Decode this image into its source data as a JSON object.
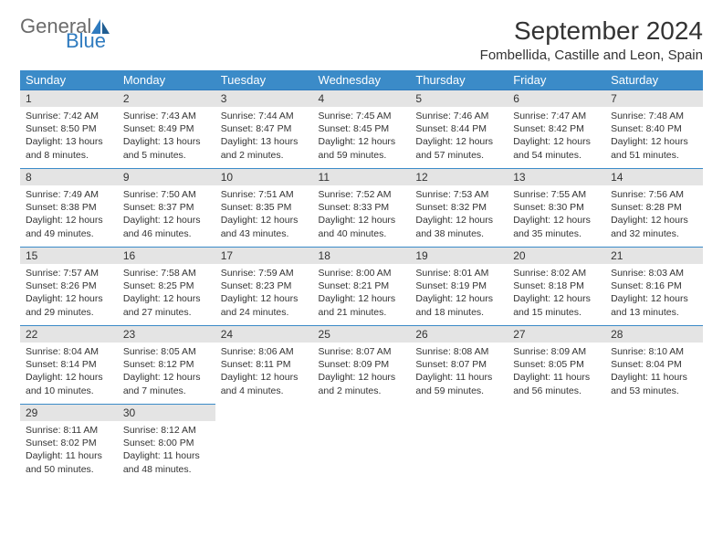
{
  "logo": {
    "part1": "General",
    "part2": "Blue"
  },
  "title": "September 2024",
  "location": "Fombellida, Castille and Leon, Spain",
  "colors": {
    "header_bg": "#3b8bc8",
    "header_text": "#ffffff",
    "daynum_bg": "#e4e4e4",
    "border": "#3b8bc8",
    "logo_gray": "#6b6b6b",
    "logo_blue": "#2f7bbf",
    "page_bg": "#ffffff",
    "text": "#333333"
  },
  "weekdays": [
    "Sunday",
    "Monday",
    "Tuesday",
    "Wednesday",
    "Thursday",
    "Friday",
    "Saturday"
  ],
  "weeks": [
    [
      {
        "n": "1",
        "sr": "Sunrise: 7:42 AM",
        "ss": "Sunset: 8:50 PM",
        "dl": "Daylight: 13 hours and 8 minutes."
      },
      {
        "n": "2",
        "sr": "Sunrise: 7:43 AM",
        "ss": "Sunset: 8:49 PM",
        "dl": "Daylight: 13 hours and 5 minutes."
      },
      {
        "n": "3",
        "sr": "Sunrise: 7:44 AM",
        "ss": "Sunset: 8:47 PM",
        "dl": "Daylight: 13 hours and 2 minutes."
      },
      {
        "n": "4",
        "sr": "Sunrise: 7:45 AM",
        "ss": "Sunset: 8:45 PM",
        "dl": "Daylight: 12 hours and 59 minutes."
      },
      {
        "n": "5",
        "sr": "Sunrise: 7:46 AM",
        "ss": "Sunset: 8:44 PM",
        "dl": "Daylight: 12 hours and 57 minutes."
      },
      {
        "n": "6",
        "sr": "Sunrise: 7:47 AM",
        "ss": "Sunset: 8:42 PM",
        "dl": "Daylight: 12 hours and 54 minutes."
      },
      {
        "n": "7",
        "sr": "Sunrise: 7:48 AM",
        "ss": "Sunset: 8:40 PM",
        "dl": "Daylight: 12 hours and 51 minutes."
      }
    ],
    [
      {
        "n": "8",
        "sr": "Sunrise: 7:49 AM",
        "ss": "Sunset: 8:38 PM",
        "dl": "Daylight: 12 hours and 49 minutes."
      },
      {
        "n": "9",
        "sr": "Sunrise: 7:50 AM",
        "ss": "Sunset: 8:37 PM",
        "dl": "Daylight: 12 hours and 46 minutes."
      },
      {
        "n": "10",
        "sr": "Sunrise: 7:51 AM",
        "ss": "Sunset: 8:35 PM",
        "dl": "Daylight: 12 hours and 43 minutes."
      },
      {
        "n": "11",
        "sr": "Sunrise: 7:52 AM",
        "ss": "Sunset: 8:33 PM",
        "dl": "Daylight: 12 hours and 40 minutes."
      },
      {
        "n": "12",
        "sr": "Sunrise: 7:53 AM",
        "ss": "Sunset: 8:32 PM",
        "dl": "Daylight: 12 hours and 38 minutes."
      },
      {
        "n": "13",
        "sr": "Sunrise: 7:55 AM",
        "ss": "Sunset: 8:30 PM",
        "dl": "Daylight: 12 hours and 35 minutes."
      },
      {
        "n": "14",
        "sr": "Sunrise: 7:56 AM",
        "ss": "Sunset: 8:28 PM",
        "dl": "Daylight: 12 hours and 32 minutes."
      }
    ],
    [
      {
        "n": "15",
        "sr": "Sunrise: 7:57 AM",
        "ss": "Sunset: 8:26 PM",
        "dl": "Daylight: 12 hours and 29 minutes."
      },
      {
        "n": "16",
        "sr": "Sunrise: 7:58 AM",
        "ss": "Sunset: 8:25 PM",
        "dl": "Daylight: 12 hours and 27 minutes."
      },
      {
        "n": "17",
        "sr": "Sunrise: 7:59 AM",
        "ss": "Sunset: 8:23 PM",
        "dl": "Daylight: 12 hours and 24 minutes."
      },
      {
        "n": "18",
        "sr": "Sunrise: 8:00 AM",
        "ss": "Sunset: 8:21 PM",
        "dl": "Daylight: 12 hours and 21 minutes."
      },
      {
        "n": "19",
        "sr": "Sunrise: 8:01 AM",
        "ss": "Sunset: 8:19 PM",
        "dl": "Daylight: 12 hours and 18 minutes."
      },
      {
        "n": "20",
        "sr": "Sunrise: 8:02 AM",
        "ss": "Sunset: 8:18 PM",
        "dl": "Daylight: 12 hours and 15 minutes."
      },
      {
        "n": "21",
        "sr": "Sunrise: 8:03 AM",
        "ss": "Sunset: 8:16 PM",
        "dl": "Daylight: 12 hours and 13 minutes."
      }
    ],
    [
      {
        "n": "22",
        "sr": "Sunrise: 8:04 AM",
        "ss": "Sunset: 8:14 PM",
        "dl": "Daylight: 12 hours and 10 minutes."
      },
      {
        "n": "23",
        "sr": "Sunrise: 8:05 AM",
        "ss": "Sunset: 8:12 PM",
        "dl": "Daylight: 12 hours and 7 minutes."
      },
      {
        "n": "24",
        "sr": "Sunrise: 8:06 AM",
        "ss": "Sunset: 8:11 PM",
        "dl": "Daylight: 12 hours and 4 minutes."
      },
      {
        "n": "25",
        "sr": "Sunrise: 8:07 AM",
        "ss": "Sunset: 8:09 PM",
        "dl": "Daylight: 12 hours and 2 minutes."
      },
      {
        "n": "26",
        "sr": "Sunrise: 8:08 AM",
        "ss": "Sunset: 8:07 PM",
        "dl": "Daylight: 11 hours and 59 minutes."
      },
      {
        "n": "27",
        "sr": "Sunrise: 8:09 AM",
        "ss": "Sunset: 8:05 PM",
        "dl": "Daylight: 11 hours and 56 minutes."
      },
      {
        "n": "28",
        "sr": "Sunrise: 8:10 AM",
        "ss": "Sunset: 8:04 PM",
        "dl": "Daylight: 11 hours and 53 minutes."
      }
    ],
    [
      {
        "n": "29",
        "sr": "Sunrise: 8:11 AM",
        "ss": "Sunset: 8:02 PM",
        "dl": "Daylight: 11 hours and 50 minutes."
      },
      {
        "n": "30",
        "sr": "Sunrise: 8:12 AM",
        "ss": "Sunset: 8:00 PM",
        "dl": "Daylight: 11 hours and 48 minutes."
      },
      null,
      null,
      null,
      null,
      null
    ]
  ]
}
